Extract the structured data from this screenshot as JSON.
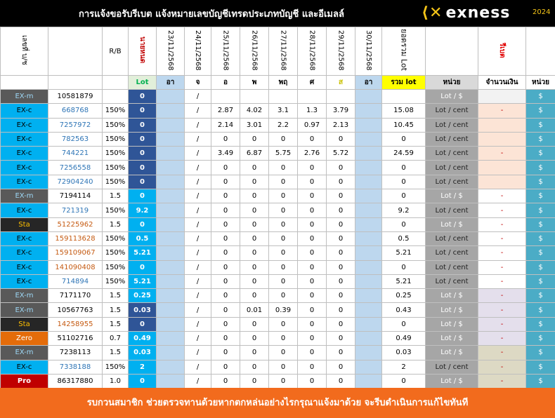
{
  "header": {
    "title": "การแจ้งขอรับรีเบต  แจ้งหมายเลขบัญชีเทรดประเภทบัญชี และอีเมลล์",
    "logo": "exness",
    "year": "2024"
  },
  "columns": {
    "account": "เลขที่ บ/ช",
    "rb": "R/B",
    "lot": "นายหนด",
    "dates": [
      "23/11/2568",
      "24/11/2568",
      "25/11/2568",
      "26/11/2568",
      "27/11/2568",
      "28/11/2568",
      "29/11/2568",
      "30/11/2568"
    ],
    "total": "ยอดรวม Lot",
    "rebate": "รีเบต"
  },
  "subheader": {
    "lot": "Lot",
    "days": [
      "อา",
      "จ",
      "อ",
      "พ",
      "พฤ",
      "ศ",
      "ส",
      "อา"
    ],
    "total": "รวม lot",
    "unit": "หน่วย",
    "amount": "จำนวนเงิน",
    "currency": "หน่วย"
  },
  "rows": [
    {
      "type": "EX-m",
      "account": "10581879",
      "lot": 0,
      "mark": "/",
      "unit": "Lot / $",
      "currency": "$"
    },
    {
      "type": "EX-c",
      "account": "668768",
      "rb": "150%",
      "lot": 0,
      "mark": "/",
      "days": [
        2.87,
        4.02,
        3.1,
        1.3,
        3.79
      ],
      "total": 15.08,
      "unit": "Lot / cent",
      "amount": "-",
      "currency": "$"
    },
    {
      "type": "EX-c",
      "account": "7257972",
      "rb": "150%",
      "lot": 0,
      "mark": "/",
      "days": [
        2.14,
        3.01,
        2.2,
        0.97,
        2.13
      ],
      "total": 10.45,
      "unit": "Lot / cent",
      "currency": "$"
    },
    {
      "type": "EX-c",
      "account": "782563",
      "rb": "150%",
      "lot": 0,
      "mark": "/",
      "days": [
        0,
        0,
        0,
        0,
        0
      ],
      "total": 0,
      "unit": "Lot / cent",
      "currency": "$"
    },
    {
      "type": "EX-c",
      "account": "744221",
      "rb": "150%",
      "lot": 0,
      "mark": "/",
      "days": [
        3.49,
        6.87,
        5.75,
        2.76,
        5.72
      ],
      "total": 24.59,
      "unit": "Lot / cent",
      "amount": "-",
      "currency": "$"
    },
    {
      "type": "EX-c",
      "account": "7256558",
      "rb": "150%",
      "lot": 0,
      "mark": "/",
      "days": [
        0,
        0,
        0,
        0,
        0
      ],
      "total": 0,
      "unit": "Lot / cent",
      "currency": "$"
    },
    {
      "type": "EX-c",
      "account": "72904240",
      "rb": "150%",
      "lot": 0,
      "mark": "/",
      "days": [
        0,
        0,
        0,
        0,
        0
      ],
      "total": 0,
      "unit": "Lot / cent",
      "currency": "$"
    },
    {
      "type": "EX-m",
      "account": "7194114",
      "rb": "1.5",
      "lot": 0,
      "mark": "/",
      "days": [
        0,
        0,
        0,
        0,
        0
      ],
      "total": 0,
      "unit": "Lot / $",
      "amount": "-",
      "currency": "$"
    },
    {
      "type": "EX-c",
      "account": "721319",
      "rb": "150%",
      "lot": 9.2,
      "mark": "/",
      "days": [
        0,
        0,
        0,
        0,
        0
      ],
      "total": 9.2,
      "unit": "Lot / cent",
      "amount": "-",
      "currency": "$"
    },
    {
      "type": "Sta",
      "account": "51225962",
      "rb": "1.5",
      "lot": 0,
      "mark": "/",
      "days": [
        0,
        0,
        0,
        0,
        0
      ],
      "total": 0,
      "unit": "Lot / $",
      "amount": "-",
      "currency": "$"
    },
    {
      "type": "EX-c",
      "account": "159113628",
      "rb": "150%",
      "lot": 0.5,
      "mark": "/",
      "days": [
        0,
        0,
        0,
        0,
        0
      ],
      "total": 0.5,
      "unit": "Lot / cent",
      "amount": "-",
      "currency": "$"
    },
    {
      "type": "EX-c",
      "account": "159109067",
      "rb": "150%",
      "lot": 5.21,
      "mark": "/",
      "days": [
        0,
        0,
        0,
        0,
        0
      ],
      "total": 5.21,
      "unit": "Lot / cent",
      "amount": "-",
      "currency": "$"
    },
    {
      "type": "EX-c",
      "account": "141090408",
      "rb": "150%",
      "lot": 0,
      "mark": "/",
      "days": [
        0,
        0,
        0,
        0,
        0
      ],
      "total": 0,
      "unit": "Lot / cent",
      "amount": "-",
      "currency": "$"
    },
    {
      "type": "EX-c",
      "account": "714894",
      "rb": "150%",
      "lot": 5.21,
      "mark": "/",
      "days": [
        0,
        0,
        0,
        0,
        0
      ],
      "total": 5.21,
      "unit": "Lot / cent",
      "amount": "-",
      "currency": "$"
    },
    {
      "type": "EX-m",
      "account": "7171170",
      "rb": "1.5",
      "lot": 0.25,
      "mark": "/",
      "days": [
        0,
        0,
        0,
        0,
        0
      ],
      "total": 0.25,
      "unit": "Lot / $",
      "amount": "-",
      "currency": "$"
    },
    {
      "type": "EX-m",
      "account": "10567763",
      "rb": "1.5",
      "lot": 0.03,
      "mark": "/",
      "days": [
        0,
        0.01,
        0.39,
        0,
        0
      ],
      "total": 0.43,
      "unit": "Lot / $",
      "amount": "-",
      "currency": "$"
    },
    {
      "type": "Sta",
      "account": "14258955",
      "rb": "1.5",
      "lot": 0,
      "mark": "/",
      "days": [
        0,
        0,
        0,
        0,
        0
      ],
      "total": 0,
      "unit": "Lot / $",
      "amount": "-",
      "currency": "$"
    },
    {
      "type": "Zero",
      "account": "51102716",
      "rb": "0.7",
      "lot": 0.49,
      "mark": "/",
      "days": [
        0,
        0,
        0,
        0,
        0
      ],
      "total": 0.49,
      "unit": "Lot / $",
      "amount": "-",
      "currency": "$"
    },
    {
      "type": "EX-m",
      "account": "7238113",
      "rb": "1.5",
      "lot": 0.03,
      "mark": "/",
      "days": [
        0,
        0,
        0,
        0,
        0
      ],
      "total": 0.03,
      "unit": "Lot / $",
      "amount": "-",
      "currency": "$"
    },
    {
      "type": "EX-c",
      "account": "7338188",
      "rb": "150%",
      "lot": 2,
      "mark": "/",
      "days": [
        0,
        0,
        0,
        0,
        0
      ],
      "total": 2,
      "unit": "Lot / cent",
      "amount": "-",
      "currency": "$"
    },
    {
      "type": "Pro",
      "account": "86317880",
      "rb": "1.0",
      "lot": 0,
      "mark": "/",
      "days": [
        0,
        0,
        0,
        0,
        0
      ],
      "total": 0,
      "unit": "Lot / $",
      "amount": "-",
      "currency": "$"
    }
  ],
  "footer": "รบกวนสมาชิก ช่วยตรวจทานด้วยหากตกหล่นอย่างไรกรุณาแจ้งมาด้วย จะรีบดำเนินการแก้ไขทันที"
}
